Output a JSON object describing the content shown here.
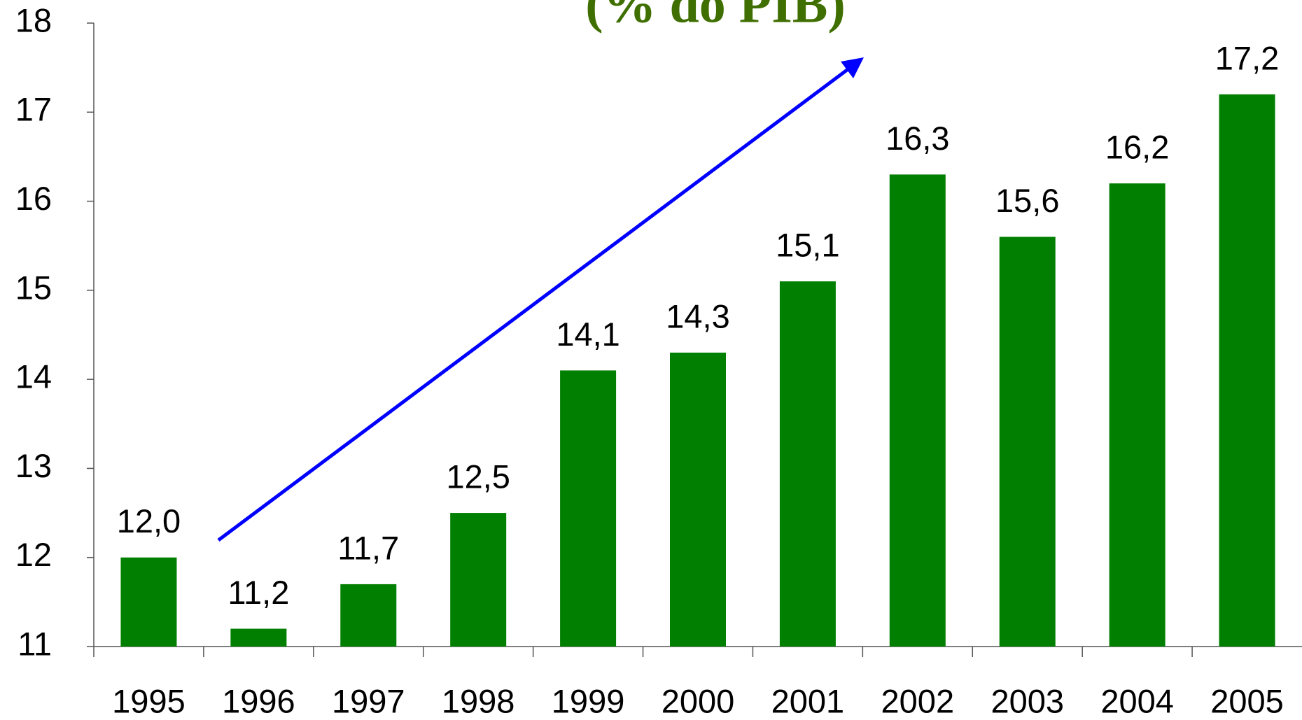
{
  "chart_data": {
    "type": "bar",
    "title": "(% do PIB)",
    "categories": [
      "1995",
      "1996",
      "1997",
      "1998",
      "1999",
      "2000",
      "2001",
      "2002",
      "2003",
      "2004",
      "2005"
    ],
    "values": [
      12.0,
      11.2,
      11.7,
      12.5,
      14.1,
      14.3,
      15.1,
      16.3,
      15.6,
      16.2,
      17.2
    ],
    "value_labels": [
      "12,0",
      "11,2",
      "11,7",
      "12,5",
      "14,1",
      "14,3",
      "15,1",
      "16,3",
      "15,6",
      "16,2",
      "17,2"
    ],
    "color": "#007f00",
    "ylim": [
      11,
      18
    ],
    "yticks": [
      11,
      12,
      13,
      14,
      15,
      16,
      17,
      18
    ],
    "grid": false
  }
}
